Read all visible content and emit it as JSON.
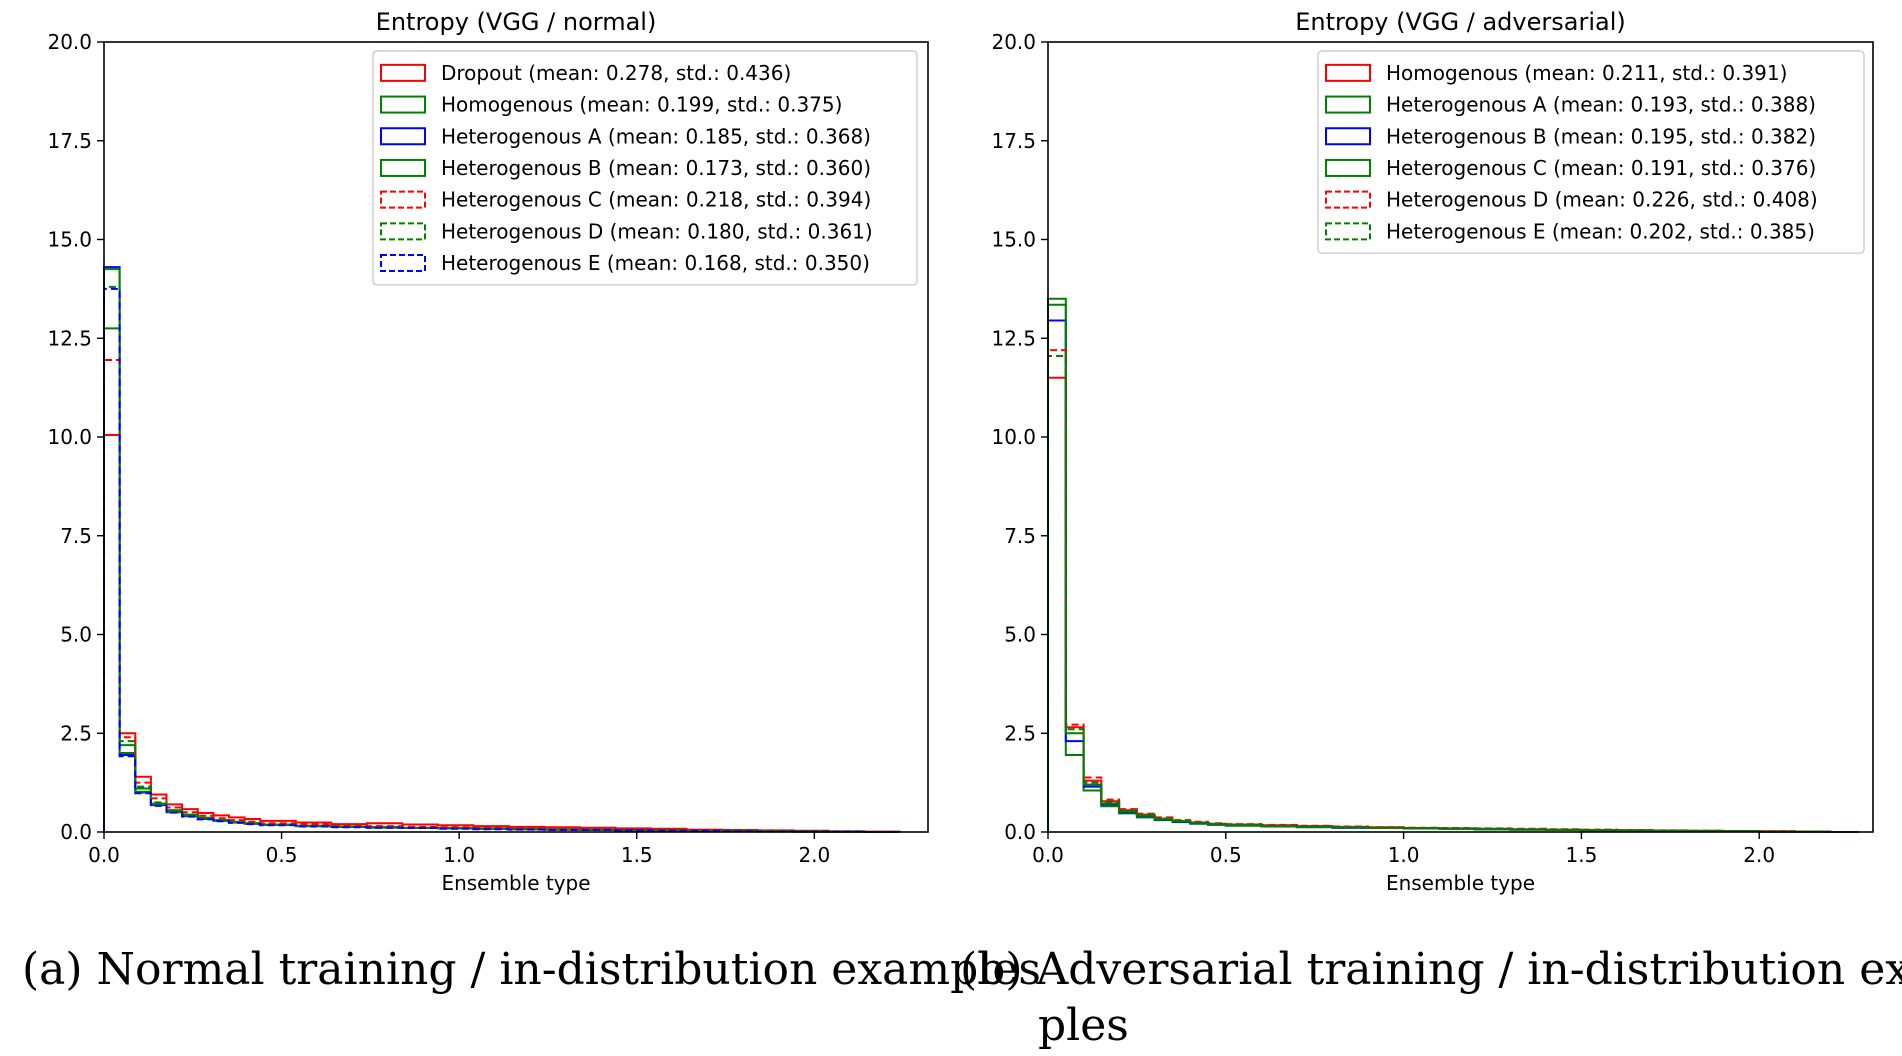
{
  "colors": {
    "red": "#ff0000",
    "green": "#008000",
    "blue": "#0000ff",
    "axis": "#000000",
    "legend_border": "#cccccc"
  },
  "captions": {
    "a": "(a) Normal training / in-distribution examples",
    "b_line1": "(b) Adversarial training / in-distribution exam-",
    "b_line2": "ples"
  },
  "chart_data": [
    {
      "type": "histogram-step",
      "title": "Entropy (VGG / normal)",
      "xlabel": "Ensemble type",
      "ylabel": "",
      "xlim": [
        0.0,
        2.32
      ],
      "ylim": [
        0.0,
        20.0
      ],
      "xticks": [
        "0.0",
        "0.5",
        "1.0",
        "1.5",
        "2.0"
      ],
      "yticks": [
        "0.0",
        "2.5",
        "5.0",
        "7.5",
        "10.0",
        "12.5",
        "15.0",
        "17.5",
        "20.0"
      ],
      "legend_position": "upper right",
      "bin_edges": [
        0.0,
        0.044,
        0.088,
        0.132,
        0.176,
        0.22,
        0.264,
        0.308,
        0.352,
        0.396,
        0.44,
        0.54,
        0.64,
        0.74,
        0.84,
        0.94,
        1.04,
        1.14,
        1.24,
        1.34,
        1.44,
        1.54,
        1.64,
        1.74,
        1.84,
        1.94,
        2.04,
        2.14,
        2.24
      ],
      "series": [
        {
          "name": "Dropout (mean: 0.278, std.: 0.436)",
          "color": "red",
          "dash": false,
          "values": [
            10.05,
            2.5,
            1.4,
            0.95,
            0.7,
            0.58,
            0.48,
            0.42,
            0.37,
            0.33,
            0.28,
            0.24,
            0.2,
            0.22,
            0.19,
            0.17,
            0.15,
            0.13,
            0.12,
            0.11,
            0.09,
            0.08,
            0.06,
            0.05,
            0.04,
            0.03,
            0.02,
            0.01
          ]
        },
        {
          "name": "Homogenous (mean: 0.199, std.: 0.375)",
          "color": "green",
          "dash": false,
          "values": [
            12.75,
            2.2,
            1.1,
            0.72,
            0.55,
            0.44,
            0.36,
            0.3,
            0.26,
            0.22,
            0.19,
            0.16,
            0.14,
            0.12,
            0.11,
            0.1,
            0.09,
            0.08,
            0.07,
            0.06,
            0.05,
            0.04,
            0.03,
            0.03,
            0.02,
            0.02,
            0.01,
            0.0
          ]
        },
        {
          "name": "Heterogenous A (mean: 0.185, std.: 0.368)",
          "color": "blue",
          "dash": false,
          "values": [
            14.3,
            1.95,
            1.0,
            0.68,
            0.5,
            0.4,
            0.33,
            0.28,
            0.24,
            0.21,
            0.18,
            0.15,
            0.13,
            0.12,
            0.1,
            0.09,
            0.08,
            0.07,
            0.06,
            0.05,
            0.05,
            0.04,
            0.03,
            0.02,
            0.02,
            0.01,
            0.01,
            0.0
          ]
        },
        {
          "name": "Heterogenous B (mean: 0.173, std.: 0.360)",
          "color": "green",
          "dash": false,
          "values": [
            14.25,
            2.0,
            1.02,
            0.7,
            0.51,
            0.41,
            0.34,
            0.29,
            0.25,
            0.21,
            0.18,
            0.15,
            0.13,
            0.11,
            0.1,
            0.09,
            0.08,
            0.07,
            0.06,
            0.05,
            0.04,
            0.04,
            0.03,
            0.02,
            0.02,
            0.01,
            0.01,
            0.0
          ]
        },
        {
          "name": "Heterogenous C (mean: 0.218, std.: 0.394)",
          "color": "red",
          "dash": true,
          "values": [
            11.95,
            2.4,
            1.25,
            0.85,
            0.62,
            0.5,
            0.41,
            0.35,
            0.3,
            0.26,
            0.22,
            0.19,
            0.17,
            0.15,
            0.13,
            0.12,
            0.1,
            0.09,
            0.08,
            0.07,
            0.06,
            0.05,
            0.04,
            0.03,
            0.02,
            0.02,
            0.01,
            0.0
          ]
        },
        {
          "name": "Heterogenous D (mean: 0.180, std.: 0.361)",
          "color": "green",
          "dash": true,
          "values": [
            13.8,
            2.3,
            1.15,
            0.75,
            0.55,
            0.43,
            0.35,
            0.3,
            0.25,
            0.22,
            0.19,
            0.16,
            0.14,
            0.12,
            0.1,
            0.09,
            0.08,
            0.07,
            0.06,
            0.05,
            0.04,
            0.04,
            0.03,
            0.02,
            0.02,
            0.01,
            0.01,
            0.0
          ]
        },
        {
          "name": "Heterogenous E (mean: 0.168, std.: 0.350)",
          "color": "blue",
          "dash": true,
          "values": [
            13.75,
            1.92,
            0.98,
            0.66,
            0.49,
            0.39,
            0.32,
            0.27,
            0.23,
            0.2,
            0.17,
            0.14,
            0.12,
            0.11,
            0.1,
            0.08,
            0.07,
            0.06,
            0.05,
            0.05,
            0.04,
            0.03,
            0.03,
            0.02,
            0.01,
            0.01,
            0.01,
            0.0
          ]
        }
      ]
    },
    {
      "type": "histogram-step",
      "title": "Entropy (VGG / adversarial)",
      "xlabel": "Ensemble type",
      "ylabel": "",
      "xlim": [
        0.0,
        2.32
      ],
      "ylim": [
        0.0,
        20.0
      ],
      "xticks": [
        "0.0",
        "0.5",
        "1.0",
        "1.5",
        "2.0"
      ],
      "yticks": [
        "0.0",
        "2.5",
        "5.0",
        "7.5",
        "10.0",
        "12.5",
        "15.0",
        "17.5",
        "20.0"
      ],
      "legend_position": "upper right",
      "bin_edges": [
        0.0,
        0.05,
        0.1,
        0.15,
        0.2,
        0.25,
        0.3,
        0.35,
        0.4,
        0.45,
        0.5,
        0.6,
        0.7,
        0.8,
        0.9,
        1.0,
        1.1,
        1.2,
        1.3,
        1.4,
        1.5,
        1.6,
        1.7,
        1.8,
        1.9,
        2.0,
        2.1,
        2.2,
        2.28
      ],
      "series": [
        {
          "name": "Homogenous (mean: 0.211, std.: 0.391)",
          "color": "red",
          "dash": false,
          "values": [
            11.5,
            2.65,
            1.3,
            0.78,
            0.55,
            0.44,
            0.34,
            0.28,
            0.24,
            0.21,
            0.19,
            0.17,
            0.15,
            0.13,
            0.12,
            0.1,
            0.09,
            0.08,
            0.07,
            0.06,
            0.05,
            0.04,
            0.03,
            0.03,
            0.02,
            0.02,
            0.01,
            0.0
          ]
        },
        {
          "name": "Heterogenous A (mean: 0.193, std.: 0.388)",
          "color": "green",
          "dash": false,
          "values": [
            13.5,
            1.95,
            1.05,
            0.65,
            0.47,
            0.37,
            0.3,
            0.25,
            0.21,
            0.18,
            0.16,
            0.14,
            0.12,
            0.11,
            0.1,
            0.09,
            0.08,
            0.07,
            0.06,
            0.05,
            0.04,
            0.04,
            0.03,
            0.02,
            0.02,
            0.01,
            0.01,
            0.0
          ]
        },
        {
          "name": "Heterogenous B (mean: 0.195, std.: 0.382)",
          "color": "blue",
          "dash": false,
          "values": [
            12.95,
            2.3,
            1.15,
            0.7,
            0.5,
            0.4,
            0.32,
            0.26,
            0.22,
            0.19,
            0.17,
            0.15,
            0.13,
            0.11,
            0.1,
            0.09,
            0.08,
            0.07,
            0.06,
            0.05,
            0.04,
            0.04,
            0.03,
            0.02,
            0.02,
            0.01,
            0.01,
            0.0
          ]
        },
        {
          "name": "Heterogenous C (mean: 0.191, std.: 0.376)",
          "color": "green",
          "dash": false,
          "values": [
            13.35,
            2.5,
            1.2,
            0.72,
            0.52,
            0.41,
            0.33,
            0.27,
            0.23,
            0.2,
            0.17,
            0.15,
            0.13,
            0.12,
            0.1,
            0.09,
            0.08,
            0.07,
            0.06,
            0.05,
            0.04,
            0.04,
            0.03,
            0.02,
            0.02,
            0.01,
            0.01,
            0.0
          ]
        },
        {
          "name": "Heterogenous D (mean: 0.226, std.: 0.408)",
          "color": "red",
          "dash": true,
          "values": [
            12.2,
            2.72,
            1.38,
            0.82,
            0.58,
            0.46,
            0.37,
            0.3,
            0.26,
            0.22,
            0.2,
            0.18,
            0.16,
            0.14,
            0.12,
            0.11,
            0.1,
            0.09,
            0.08,
            0.07,
            0.06,
            0.05,
            0.04,
            0.03,
            0.02,
            0.02,
            0.01,
            0.0
          ]
        },
        {
          "name": "Heterogenous E (mean: 0.202, std.: 0.385)",
          "color": "green",
          "dash": true,
          "values": [
            12.05,
            2.6,
            1.25,
            0.76,
            0.54,
            0.43,
            0.34,
            0.28,
            0.24,
            0.21,
            0.18,
            0.16,
            0.14,
            0.12,
            0.11,
            0.1,
            0.09,
            0.08,
            0.07,
            0.06,
            0.05,
            0.04,
            0.03,
            0.03,
            0.02,
            0.01,
            0.01,
            0.0
          ]
        }
      ]
    }
  ]
}
